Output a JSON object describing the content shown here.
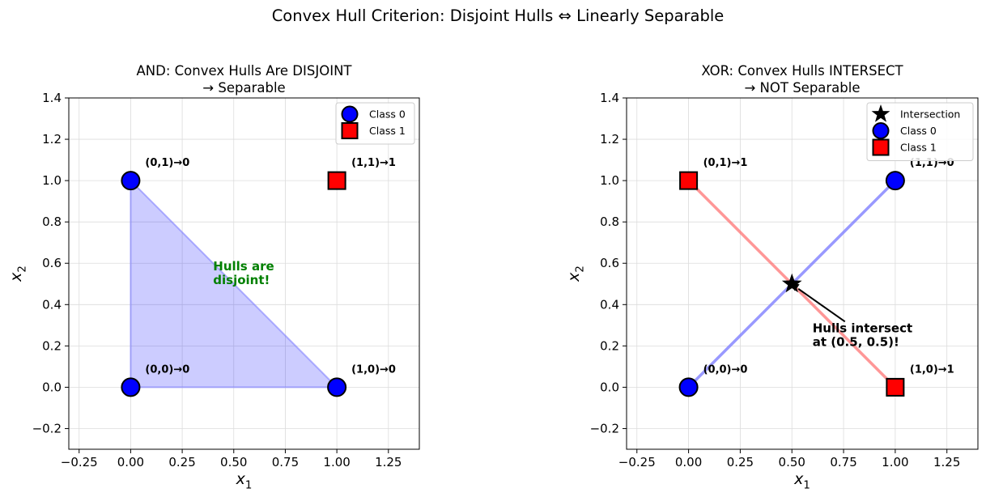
{
  "figure_title": "Convex Hull Criterion: Disjoint Hulls ⇔ Linearly Separable",
  "chart_data": [
    {
      "type": "scatter",
      "title": "AND: Convex Hulls Are DISJOINT\n→ Separable",
      "xlabel": "x1",
      "ylabel": "x2",
      "xlim": [
        -0.3,
        1.4
      ],
      "ylim": [
        -0.3,
        1.4
      ],
      "xticks": [
        "−0.25",
        "0.00",
        "0.25",
        "0.50",
        "0.75",
        "1.00",
        "1.25"
      ],
      "yticks": [
        "−0.2",
        "0.0",
        "0.2",
        "0.4",
        "0.6",
        "0.8",
        "1.0",
        "1.2",
        "1.4"
      ],
      "grid": true,
      "legend_position": "top-right",
      "legend": [
        "Class 0",
        "Class 1"
      ],
      "colors": {
        "class0": "#0000ff",
        "class1": "#ff0000",
        "hull0": "#8080ff",
        "note": "#008000"
      },
      "series": [
        {
          "name": "Class 0",
          "marker": "circle",
          "points": [
            [
              0,
              0
            ],
            [
              0,
              1
            ],
            [
              1,
              0
            ]
          ]
        },
        {
          "name": "Class 1",
          "marker": "square",
          "points": [
            [
              1,
              1
            ]
          ]
        }
      ],
      "hull_class0": [
        [
          0,
          0
        ],
        [
          1,
          0
        ],
        [
          0,
          1
        ]
      ],
      "point_labels": [
        {
          "x": 0,
          "y": 1,
          "text": "(0,1)→0"
        },
        {
          "x": 1,
          "y": 1,
          "text": "(1,1)→1"
        },
        {
          "x": 0,
          "y": 0,
          "text": "(0,0)→0"
        },
        {
          "x": 1,
          "y": 0,
          "text": "(1,0)→0"
        }
      ],
      "annotation": {
        "x": 0.4,
        "y": 0.5,
        "text": "Hulls are\ndisjoint!"
      }
    },
    {
      "type": "scatter",
      "title": "XOR: Convex Hulls INTERSECT\n→ NOT Separable",
      "xlabel": "x1",
      "ylabel": "x2",
      "xlim": [
        -0.3,
        1.4
      ],
      "ylim": [
        -0.3,
        1.4
      ],
      "xticks": [
        "−0.25",
        "0.00",
        "0.25",
        "0.50",
        "0.75",
        "1.00",
        "1.25"
      ],
      "yticks": [
        "−0.2",
        "0.0",
        "0.2",
        "0.4",
        "0.6",
        "0.8",
        "1.0",
        "1.2",
        "1.4"
      ],
      "grid": true,
      "legend_position": "top-right",
      "legend": [
        "Intersection",
        "Class 0",
        "Class 1"
      ],
      "colors": {
        "class0": "#0000ff",
        "class1": "#ff0000",
        "hull0": "#8080ff",
        "hull1": "#ff6b6b"
      },
      "series": [
        {
          "name": "Class 0",
          "marker": "circle",
          "points": [
            [
              0,
              0
            ],
            [
              1,
              1
            ]
          ]
        },
        {
          "name": "Class 1",
          "marker": "square",
          "points": [
            [
              0,
              1
            ],
            [
              1,
              0
            ]
          ]
        }
      ],
      "hull_class0": [
        [
          0,
          0
        ],
        [
          1,
          1
        ]
      ],
      "hull_class1": [
        [
          0,
          1
        ],
        [
          1,
          0
        ]
      ],
      "intersection": {
        "x": 0.5,
        "y": 0.5
      },
      "point_labels": [
        {
          "x": 0,
          "y": 1,
          "text": "(0,1)→1"
        },
        {
          "x": 1,
          "y": 1,
          "text": "(1,1)→0"
        },
        {
          "x": 0,
          "y": 0,
          "text": "(0,0)→0"
        },
        {
          "x": 1,
          "y": 0,
          "text": "(1,0)→1"
        }
      ],
      "annotation": {
        "x": 0.6,
        "y": 0.2,
        "text": "Hulls intersect\nat (0.5, 0.5)!",
        "arrow_to": [
          0.5,
          0.5
        ]
      }
    }
  ]
}
